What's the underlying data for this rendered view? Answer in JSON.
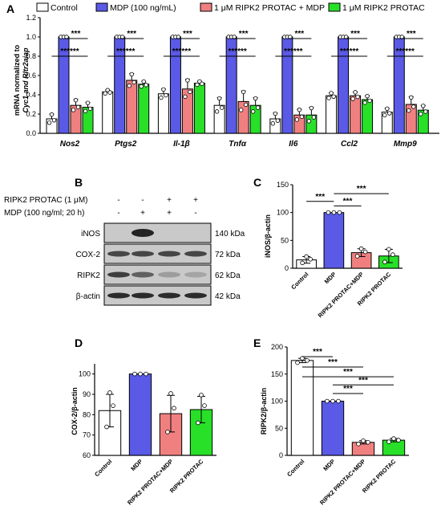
{
  "colors": {
    "control": "#ffffff",
    "mdp": "#5a5ae6",
    "protac_mdp": "#f08080",
    "protac": "#28e028",
    "axis": "#000000"
  },
  "panel_letters": {
    "a": "A",
    "b": "B",
    "c": "C",
    "d": "D",
    "e": "E"
  },
  "chart_data": [
    {
      "id": "A",
      "type": "bar",
      "ylabel_line1": "mRNA normalized to",
      "ylabel_line2": "Cyc1 and Rltr2aiap",
      "ylim": [
        0,
        1.2
      ],
      "yticks": [
        "0.0",
        "0.2",
        "0.4",
        "0.6",
        "0.8",
        "1.0",
        "1.2"
      ],
      "categories": [
        "Nos2",
        "Ptgs2",
        "Il-1β",
        "Tnfα",
        "Il6",
        "Ccl2",
        "Mmp9"
      ],
      "legend": [
        "Control",
        "MDP (100 ng/mL)",
        "1 μM RIPK2 PROTAC + MDP",
        "1 μM RIPK2 PROTAC"
      ],
      "series": [
        {
          "name": "Control",
          "values": [
            0.15,
            0.43,
            0.41,
            0.29,
            0.15,
            0.39,
            0.22
          ],
          "errors": [
            0.05,
            0.02,
            0.05,
            0.08,
            0.06,
            0.03,
            0.04
          ]
        },
        {
          "name": "MDP (100 ng/mL)",
          "values": [
            1.0,
            1.0,
            1.0,
            1.0,
            1.0,
            1.0,
            1.0
          ],
          "errors": [
            0,
            0,
            0,
            0,
            0,
            0,
            0
          ]
        },
        {
          "name": "1 μM RIPK2 PROTAC + MDP",
          "values": [
            0.29,
            0.55,
            0.46,
            0.33,
            0.19,
            0.39,
            0.3
          ],
          "errors": [
            0.06,
            0.07,
            0.1,
            0.11,
            0.06,
            0.04,
            0.08
          ]
        },
        {
          "name": "1 μM RIPK2 PROTAC",
          "values": [
            0.27,
            0.51,
            0.52,
            0.29,
            0.19,
            0.35,
            0.24
          ],
          "errors": [
            0.05,
            0.03,
            0.02,
            0.08,
            0.08,
            0.04,
            0.05
          ]
        }
      ],
      "significance": "***"
    },
    {
      "id": "C",
      "type": "bar",
      "ylabel": "iNOS/β-actin",
      "ylim": [
        0,
        150
      ],
      "yticks": [
        "0",
        "50",
        "100",
        "150"
      ],
      "categories": [
        "Control",
        "MDP",
        "RIPK2 PROTAC+MDP",
        "RIPK2 PROTAC"
      ],
      "values": [
        15,
        100,
        28,
        22
      ],
      "errors": [
        6,
        0,
        7,
        12
      ],
      "significance": "***"
    },
    {
      "id": "D",
      "type": "bar",
      "ylabel": "COX-2/β-actin",
      "ylim": [
        60,
        105
      ],
      "yticks": [
        "60",
        "70",
        "80",
        "90",
        "100"
      ],
      "categories": [
        "Control",
        "MDP",
        "RIPK2 PROTAC+MDP",
        "RIPK2 PROTAC"
      ],
      "values": [
        82,
        100,
        80.5,
        82.5
      ],
      "errors": [
        8,
        0,
        9,
        6.5
      ]
    },
    {
      "id": "E",
      "type": "bar",
      "ylabel": "RIPK2/β-actin",
      "ylim": [
        0,
        200
      ],
      "yticks": [
        "0",
        "50",
        "100",
        "150",
        "200"
      ],
      "categories": [
        "Control",
        "MDP",
        "RIPK2 PROTAC+MDP",
        "RIPK2 PROTAC"
      ],
      "values": [
        175,
        100,
        24,
        28
      ],
      "errors": [
        4,
        0,
        3,
        3
      ],
      "significance": "***"
    }
  ],
  "blot": {
    "row_labels": [
      "RIPK2 PROTAC (1 μM)",
      "MDP (100 ng/ml; 20 h)"
    ],
    "treatments": [
      [
        "-",
        "-",
        "+",
        "+"
      ],
      [
        "-",
        "+",
        "+",
        "-"
      ]
    ],
    "bands": [
      {
        "name": "iNOS",
        "kda": "140 kDa"
      },
      {
        "name": "COX-2",
        "kda": "72 kDa"
      },
      {
        "name": "RIPK2",
        "kda": "62 kDa"
      },
      {
        "name": "β-actin",
        "kda": "42 kDa"
      }
    ]
  }
}
